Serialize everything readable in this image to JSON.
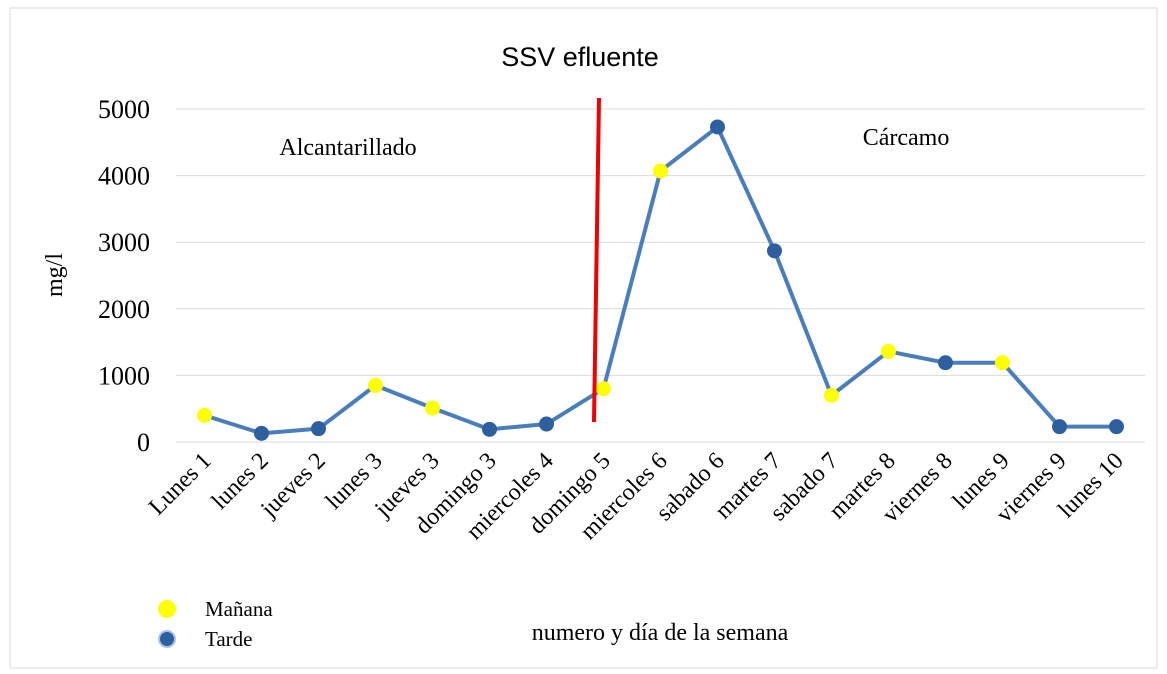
{
  "chart_data": {
    "type": "line",
    "title": "SSV efluente",
    "x_label": "numero y día de la semana",
    "y_label": "mg/l",
    "categories": [
      "Lunes 1",
      "lunes 2",
      "jueves 2",
      "lunes 3",
      "jueves 3",
      "domingo 3",
      "miercoles 4",
      "domingo 5",
      "miercoles 6",
      "sabado 6",
      "martes 7",
      "sabado 7",
      "martes 8",
      "viernes 8",
      "lunes 9",
      "viernes 9",
      "lunes 10"
    ],
    "series": [
      {
        "name": "SSV efluente",
        "color": "#4a7ebb",
        "values": [
          400,
          130,
          200,
          850,
          510,
          190,
          270,
          800,
          4070,
          4730,
          2870,
          700,
          1360,
          1190,
          1190,
          230,
          230
        ],
        "marker_colors": [
          "#ffff00",
          "#2e5f9e",
          "#2e5f9e",
          "#ffff00",
          "#ffff00",
          "#2e5f9e",
          "#2e5f9e",
          "#ffff00",
          "#ffff00",
          "#2e5f9e",
          "#2e5f9e",
          "#ffff00",
          "#ffff00",
          "#2e5f9e",
          "#ffff00",
          "#2e5f9e",
          "#2e5f9e"
        ]
      }
    ],
    "legend": [
      {
        "name": "Mañana",
        "color": "#ffff00"
      },
      {
        "name": "Tarde",
        "color": "#2e5f9e"
      }
    ],
    "annotations": [
      "Alcantarillado",
      "Cárcamo"
    ],
    "ylim": [
      0,
      5000
    ],
    "yticks": [
      0,
      1000,
      2000,
      3000,
      4000,
      5000
    ],
    "grid": true
  }
}
